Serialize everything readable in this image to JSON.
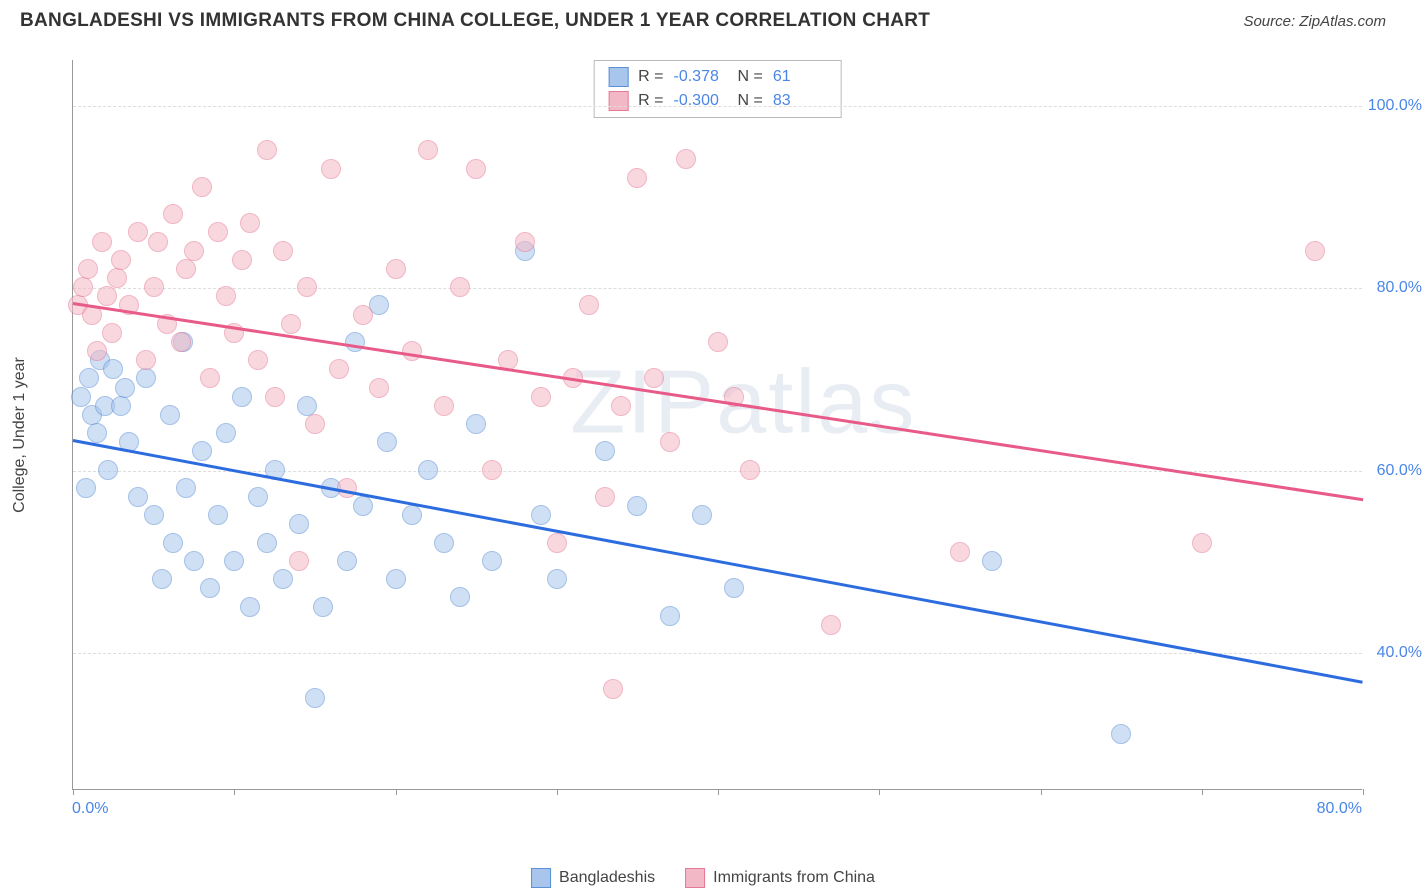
{
  "header": {
    "title": "BANGLADESHI VS IMMIGRANTS FROM CHINA COLLEGE, UNDER 1 YEAR CORRELATION CHART",
    "source": "Source: ZipAtlas.com"
  },
  "chart": {
    "type": "scatter",
    "y_axis_label": "College, Under 1 year",
    "watermark": "ZIPatlas",
    "xlim": [
      0,
      80
    ],
    "ylim": [
      25,
      105
    ],
    "y_ticks": [
      40,
      60,
      80,
      100
    ],
    "y_tick_labels": [
      "40.0%",
      "60.0%",
      "80.0%",
      "100.0%"
    ],
    "x_ticks": [
      0,
      10,
      20,
      30,
      40,
      50,
      60,
      70,
      80
    ],
    "x_tick_labels": {
      "0": "0.0%",
      "80": "80.0%"
    },
    "background_color": "#ffffff",
    "grid_color": "#dddddd",
    "axis_color": "#999999",
    "label_color": "#4a86e8",
    "marker_radius": 10,
    "marker_opacity": 0.55,
    "series": [
      {
        "name": "Bangladeshis",
        "fill_color": "#a8c5ec",
        "stroke_color": "#5b8fd6",
        "line_color": "#2d6cdf",
        "R": "-0.378",
        "N": "61",
        "trend": {
          "x1": 0,
          "y1": 63.5,
          "x2": 80,
          "y2": 37.0
        },
        "points": [
          [
            0.5,
            68
          ],
          [
            0.8,
            58
          ],
          [
            1.0,
            70
          ],
          [
            1.2,
            66
          ],
          [
            1.5,
            64
          ],
          [
            1.7,
            72
          ],
          [
            2.0,
            67
          ],
          [
            2.2,
            60
          ],
          [
            2.5,
            71
          ],
          [
            3.0,
            67
          ],
          [
            3.2,
            69
          ],
          [
            3.5,
            63
          ],
          [
            4.0,
            57
          ],
          [
            4.5,
            70
          ],
          [
            5.0,
            55
          ],
          [
            5.5,
            48
          ],
          [
            6.0,
            66
          ],
          [
            6.2,
            52
          ],
          [
            6.8,
            74
          ],
          [
            7.0,
            58
          ],
          [
            7.5,
            50
          ],
          [
            8.0,
            62
          ],
          [
            8.5,
            47
          ],
          [
            9.0,
            55
          ],
          [
            9.5,
            64
          ],
          [
            10.0,
            50
          ],
          [
            10.5,
            68
          ],
          [
            11.0,
            45
          ],
          [
            11.5,
            57
          ],
          [
            12.0,
            52
          ],
          [
            12.5,
            60
          ],
          [
            13.0,
            48
          ],
          [
            14.0,
            54
          ],
          [
            14.5,
            67
          ],
          [
            15.0,
            35
          ],
          [
            15.5,
            45
          ],
          [
            16.0,
            58
          ],
          [
            17.0,
            50
          ],
          [
            17.5,
            74
          ],
          [
            18.0,
            56
          ],
          [
            19.0,
            78
          ],
          [
            19.5,
            63
          ],
          [
            20.0,
            48
          ],
          [
            21.0,
            55
          ],
          [
            22.0,
            60
          ],
          [
            23.0,
            52
          ],
          [
            24.0,
            46
          ],
          [
            25.0,
            65
          ],
          [
            26.0,
            50
          ],
          [
            28.0,
            84
          ],
          [
            29.0,
            55
          ],
          [
            30.0,
            48
          ],
          [
            33.0,
            62
          ],
          [
            35.0,
            56
          ],
          [
            37.0,
            44
          ],
          [
            39.0,
            55
          ],
          [
            41.0,
            47
          ],
          [
            57.0,
            50
          ],
          [
            65.0,
            31
          ]
        ]
      },
      {
        "name": "Immigrants from China",
        "fill_color": "#f3b8c6",
        "stroke_color": "#e67a96",
        "line_color": "#e85a87",
        "R": "-0.300",
        "N": "83",
        "trend": {
          "x1": 0,
          "y1": 78.5,
          "x2": 80,
          "y2": 57.0
        },
        "points": [
          [
            0.3,
            78
          ],
          [
            0.6,
            80
          ],
          [
            0.9,
            82
          ],
          [
            1.2,
            77
          ],
          [
            1.5,
            73
          ],
          [
            1.8,
            85
          ],
          [
            2.1,
            79
          ],
          [
            2.4,
            75
          ],
          [
            2.7,
            81
          ],
          [
            3.0,
            83
          ],
          [
            3.5,
            78
          ],
          [
            4.0,
            86
          ],
          [
            4.5,
            72
          ],
          [
            5.0,
            80
          ],
          [
            5.3,
            85
          ],
          [
            5.8,
            76
          ],
          [
            6.2,
            88
          ],
          [
            6.7,
            74
          ],
          [
            7.0,
            82
          ],
          [
            7.5,
            84
          ],
          [
            8.0,
            91
          ],
          [
            8.5,
            70
          ],
          [
            9.0,
            86
          ],
          [
            9.5,
            79
          ],
          [
            10.0,
            75
          ],
          [
            10.5,
            83
          ],
          [
            11.0,
            87
          ],
          [
            11.5,
            72
          ],
          [
            12.0,
            95
          ],
          [
            12.5,
            68
          ],
          [
            13.0,
            84
          ],
          [
            13.5,
            76
          ],
          [
            14.0,
            50
          ],
          [
            14.5,
            80
          ],
          [
            15.0,
            65
          ],
          [
            16.0,
            93
          ],
          [
            16.5,
            71
          ],
          [
            17.0,
            58
          ],
          [
            18.0,
            77
          ],
          [
            19.0,
            69
          ],
          [
            20.0,
            82
          ],
          [
            21.0,
            73
          ],
          [
            22.0,
            95
          ],
          [
            23.0,
            67
          ],
          [
            24.0,
            80
          ],
          [
            25.0,
            93
          ],
          [
            26.0,
            60
          ],
          [
            27.0,
            72
          ],
          [
            28.0,
            85
          ],
          [
            29.0,
            68
          ],
          [
            30.0,
            52
          ],
          [
            31.0,
            70
          ],
          [
            32.0,
            78
          ],
          [
            33.0,
            57
          ],
          [
            34.0,
            67
          ],
          [
            35.0,
            92
          ],
          [
            36.0,
            70
          ],
          [
            37.0,
            63
          ],
          [
            38.0,
            94
          ],
          [
            33.5,
            36
          ],
          [
            40.0,
            74
          ],
          [
            41.0,
            68
          ],
          [
            42.0,
            60
          ],
          [
            47.0,
            43
          ],
          [
            55.0,
            51
          ],
          [
            70.0,
            52
          ],
          [
            77.0,
            84
          ]
        ]
      }
    ],
    "legend_bottom": [
      {
        "label": "Bangladeshis",
        "fill": "#a8c5ec",
        "stroke": "#5b8fd6"
      },
      {
        "label": "Immigrants from China",
        "fill": "#f3b8c6",
        "stroke": "#e67a96"
      }
    ]
  }
}
